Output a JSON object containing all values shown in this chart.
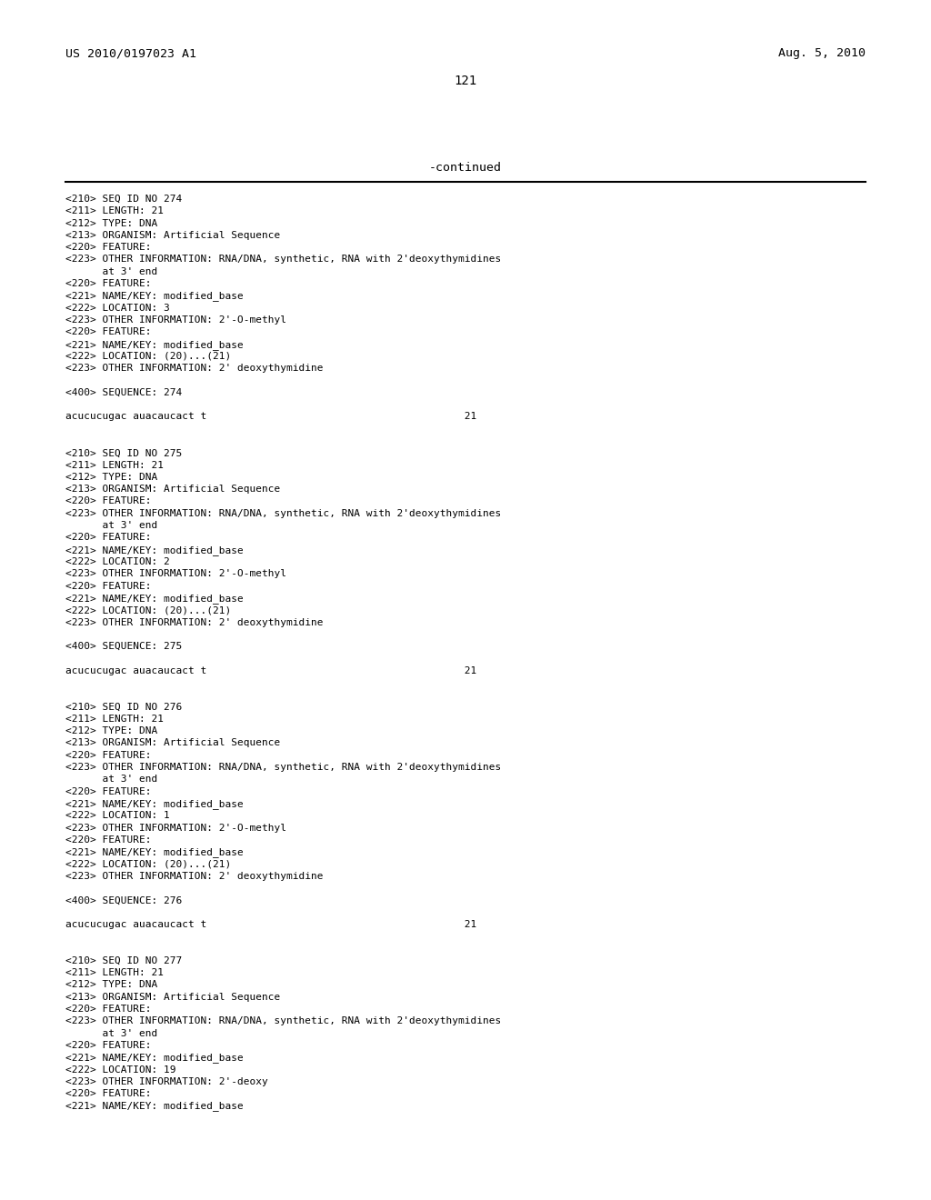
{
  "header_left": "US 2010/0197023 A1",
  "header_right": "Aug. 5, 2010",
  "page_number": "121",
  "continued_label": "-continued",
  "background_color": "#ffffff",
  "text_color": "#000000",
  "header_fontsize": 9.5,
  "page_num_fontsize": 10,
  "continued_fontsize": 9.5,
  "body_fontsize": 8.0,
  "line_color": "#000000",
  "content": [
    "<210> SEQ ID NO 274",
    "<211> LENGTH: 21",
    "<212> TYPE: DNA",
    "<213> ORGANISM: Artificial Sequence",
    "<220> FEATURE:",
    "<223> OTHER INFORMATION: RNA/DNA, synthetic, RNA with 2'deoxythymidines",
    "      at 3' end",
    "<220> FEATURE:",
    "<221> NAME/KEY: modified_base",
    "<222> LOCATION: 3",
    "<223> OTHER INFORMATION: 2'-O-methyl",
    "<220> FEATURE:",
    "<221> NAME/KEY: modified_base",
    "<222> LOCATION: (20)...(21)",
    "<223> OTHER INFORMATION: 2' deoxythymidine",
    "",
    "<400> SEQUENCE: 274",
    "",
    "acucucugac auacaucact t                                          21",
    "",
    "",
    "<210> SEQ ID NO 275",
    "<211> LENGTH: 21",
    "<212> TYPE: DNA",
    "<213> ORGANISM: Artificial Sequence",
    "<220> FEATURE:",
    "<223> OTHER INFORMATION: RNA/DNA, synthetic, RNA with 2'deoxythymidines",
    "      at 3' end",
    "<220> FEATURE:",
    "<221> NAME/KEY: modified_base",
    "<222> LOCATION: 2",
    "<223> OTHER INFORMATION: 2'-O-methyl",
    "<220> FEATURE:",
    "<221> NAME/KEY: modified_base",
    "<222> LOCATION: (20)...(21)",
    "<223> OTHER INFORMATION: 2' deoxythymidine",
    "",
    "<400> SEQUENCE: 275",
    "",
    "acucucugac auacaucact t                                          21",
    "",
    "",
    "<210> SEQ ID NO 276",
    "<211> LENGTH: 21",
    "<212> TYPE: DNA",
    "<213> ORGANISM: Artificial Sequence",
    "<220> FEATURE:",
    "<223> OTHER INFORMATION: RNA/DNA, synthetic, RNA with 2'deoxythymidines",
    "      at 3' end",
    "<220> FEATURE:",
    "<221> NAME/KEY: modified_base",
    "<222> LOCATION: 1",
    "<223> OTHER INFORMATION: 2'-O-methyl",
    "<220> FEATURE:",
    "<221> NAME/KEY: modified_base",
    "<222> LOCATION: (20)...(21)",
    "<223> OTHER INFORMATION: 2' deoxythymidine",
    "",
    "<400> SEQUENCE: 276",
    "",
    "acucucugac auacaucact t                                          21",
    "",
    "",
    "<210> SEQ ID NO 277",
    "<211> LENGTH: 21",
    "<212> TYPE: DNA",
    "<213> ORGANISM: Artificial Sequence",
    "<220> FEATURE:",
    "<223> OTHER INFORMATION: RNA/DNA, synthetic, RNA with 2'deoxythymidines",
    "      at 3' end",
    "<220> FEATURE:",
    "<221> NAME/KEY: modified_base",
    "<222> LOCATION: 19",
    "<223> OTHER INFORMATION: 2'-deoxy",
    "<220> FEATURE:",
    "<221> NAME/KEY: modified_base"
  ]
}
